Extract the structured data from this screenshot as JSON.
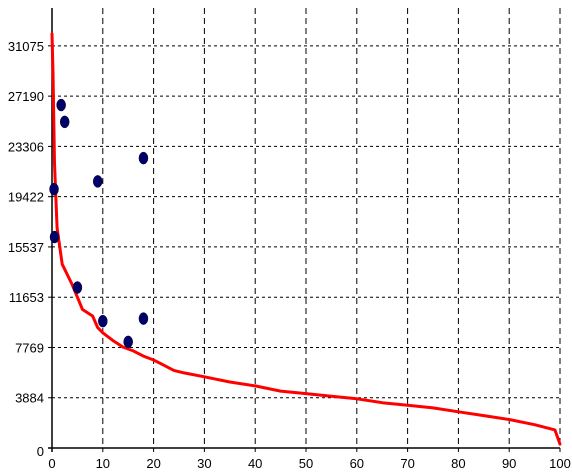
{
  "chart_data": {
    "type": "scatter",
    "title": "",
    "xlabel": "",
    "ylabel": "",
    "xlim": [
      0,
      100
    ],
    "ylim": [
      0,
      34000
    ],
    "x_ticks": [
      0,
      10,
      20,
      30,
      40,
      50,
      60,
      70,
      80,
      90,
      100
    ],
    "y_ticks": [
      0,
      3884,
      7769,
      11653,
      15537,
      19422,
      23306,
      27190,
      31075
    ],
    "grid": true,
    "grid_style": "dotted",
    "legend": "none",
    "colors": {
      "curve": "#ff0000",
      "points": "#000066",
      "grid": "#000000",
      "axes": "#000000",
      "background": "#ffffff"
    },
    "series": [
      {
        "kind": "line",
        "values": [
          [
            0,
            32000
          ],
          [
            0.2,
            29000
          ],
          [
            0.5,
            22000
          ],
          [
            1,
            17000
          ],
          [
            2,
            14200
          ],
          [
            4,
            12600
          ],
          [
            6,
            10700
          ],
          [
            8,
            10200
          ],
          [
            9,
            9300
          ],
          [
            10,
            8900
          ],
          [
            12,
            8300
          ],
          [
            14,
            7800
          ],
          [
            16,
            7500
          ],
          [
            18,
            7100
          ],
          [
            20,
            6800
          ],
          [
            22,
            6400
          ],
          [
            24,
            6000
          ],
          [
            26,
            5800
          ],
          [
            30,
            5500
          ],
          [
            35,
            5100
          ],
          [
            40,
            4800
          ],
          [
            45,
            4400
          ],
          [
            50,
            4200
          ],
          [
            55,
            4000
          ],
          [
            60,
            3800
          ],
          [
            65,
            3500
          ],
          [
            70,
            3300
          ],
          [
            75,
            3100
          ],
          [
            80,
            2800
          ],
          [
            85,
            2500
          ],
          [
            90,
            2200
          ],
          [
            95,
            1800
          ],
          [
            99,
            1400
          ],
          [
            100,
            300
          ]
        ]
      },
      {
        "kind": "points",
        "values": [
          [
            1.8,
            26500
          ],
          [
            2.5,
            25200
          ],
          [
            0.4,
            20000
          ],
          [
            9,
            20600
          ],
          [
            18,
            22400
          ],
          [
            0.5,
            16300
          ],
          [
            5,
            12400
          ],
          [
            10,
            9800
          ],
          [
            18,
            10000
          ],
          [
            15,
            8200
          ]
        ]
      }
    ]
  }
}
